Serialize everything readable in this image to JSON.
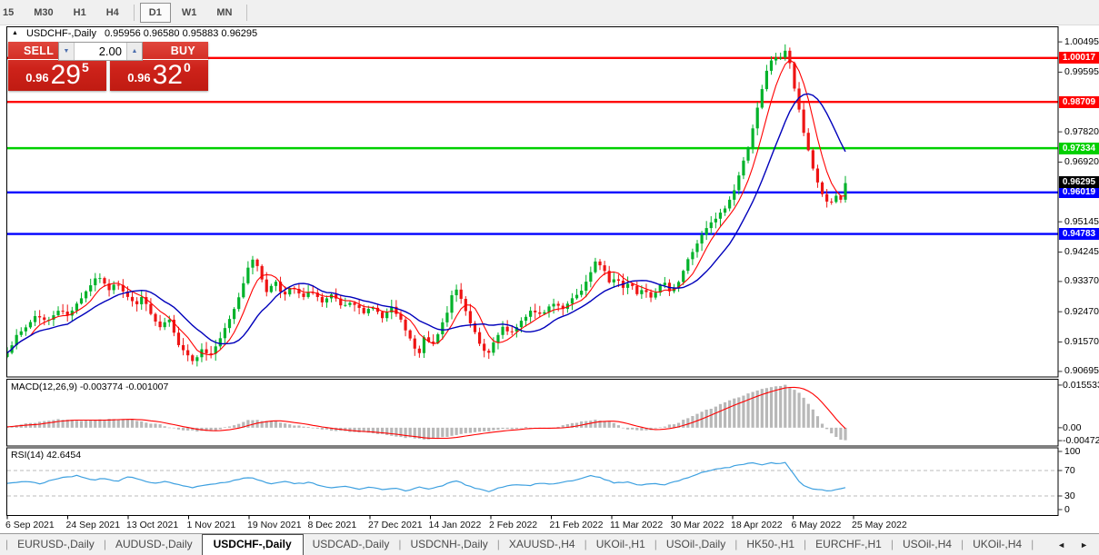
{
  "toolbar": {
    "timeframes": [
      "15",
      "M30",
      "H1",
      "H4",
      "D1",
      "W1",
      "MN"
    ],
    "active": "D1"
  },
  "icons": {
    "collapse": "▲",
    "spinner_down": "▼",
    "spinner_up": "▲",
    "tab_prev": "◄",
    "tab_next": "►"
  },
  "chart": {
    "title_symbol": "USDCHF-,Daily",
    "ohlc_text": "0.95956 0.96580 0.95883 0.96295",
    "trade_panel": {
      "sell_label": "SELL",
      "buy_label": "BUY",
      "volume": "2.00",
      "sell_price_small": "0.96",
      "sell_price_big": "29",
      "sell_price_sup": "5",
      "buy_price_small": "0.96",
      "buy_price_big": "32",
      "buy_price_sup": "0"
    }
  },
  "chart_data": {
    "type": "candlestick",
    "symbol": "USDCHF-,Daily",
    "ohlc_display": {
      "open": "0.95956",
      "high": "0.96580",
      "low": "0.95883",
      "close": "0.96295"
    },
    "num_candles": 182,
    "ylim": [
      0.9053,
      1.0093
    ],
    "price_axis_ticks": [
      {
        "label": "1.00495",
        "value": 1.00495
      },
      {
        "label": "0.99595",
        "value": 0.99595
      },
      {
        "label": "0.97820",
        "value": 0.9782
      },
      {
        "label": "0.96920",
        "value": 0.9692
      },
      {
        "label": "0.95145",
        "value": 0.95145
      },
      {
        "label": "0.94245",
        "value": 0.94245
      },
      {
        "label": "0.93370",
        "value": 0.9337
      },
      {
        "label": "0.92470",
        "value": 0.9247
      },
      {
        "label": "0.91570",
        "value": 0.9157
      },
      {
        "label": "0.90695",
        "value": 0.90695
      }
    ],
    "levels": [
      {
        "price": 1.00017,
        "label": "1.00017",
        "color": "#ff0000"
      },
      {
        "price": 0.98709,
        "label": "0.98709",
        "color": "#ff0000"
      },
      {
        "price": 0.97334,
        "label": "0.97334",
        "color": "#00d000"
      },
      {
        "price": 0.96019,
        "label": "0.96019",
        "color": "#0000ff"
      },
      {
        "price": 0.94783,
        "label": "0.94783",
        "color": "#0000ff"
      }
    ],
    "current_price": {
      "price": 0.96295,
      "label": "0.96295",
      "color": "#000000"
    },
    "close_path": [
      [
        0,
        0.913
      ],
      [
        0.01,
        0.917
      ],
      [
        0.022,
        0.92
      ],
      [
        0.035,
        0.924
      ],
      [
        0.048,
        0.9215
      ],
      [
        0.06,
        0.9255
      ],
      [
        0.072,
        0.9235
      ],
      [
        0.082,
        0.927
      ],
      [
        0.092,
        0.93
      ],
      [
        0.1,
        0.933
      ],
      [
        0.11,
        0.9352
      ],
      [
        0.12,
        0.931
      ],
      [
        0.13,
        0.934
      ],
      [
        0.142,
        0.9295
      ],
      [
        0.152,
        0.9268
      ],
      [
        0.162,
        0.929
      ],
      [
        0.172,
        0.9235
      ],
      [
        0.182,
        0.9195
      ],
      [
        0.192,
        0.9228
      ],
      [
        0.202,
        0.916
      ],
      [
        0.212,
        0.913
      ],
      [
        0.222,
        0.9098
      ],
      [
        0.232,
        0.914
      ],
      [
        0.24,
        0.9112
      ],
      [
        0.25,
        0.915
      ],
      [
        0.26,
        0.9195
      ],
      [
        0.272,
        0.926
      ],
      [
        0.282,
        0.9335
      ],
      [
        0.291,
        0.9415
      ],
      [
        0.3,
        0.937
      ],
      [
        0.31,
        0.9305
      ],
      [
        0.32,
        0.934
      ],
      [
        0.33,
        0.9292
      ],
      [
        0.34,
        0.9322
      ],
      [
        0.352,
        0.9286
      ],
      [
        0.364,
        0.931
      ],
      [
        0.376,
        0.9272
      ],
      [
        0.388,
        0.9296
      ],
      [
        0.4,
        0.9258
      ],
      [
        0.412,
        0.9272
      ],
      [
        0.424,
        0.9246
      ],
      [
        0.436,
        0.9262
      ],
      [
        0.448,
        0.9226
      ],
      [
        0.458,
        0.9258
      ],
      [
        0.468,
        0.9228
      ],
      [
        0.476,
        0.9188
      ],
      [
        0.484,
        0.915
      ],
      [
        0.49,
        0.9108
      ],
      [
        0.498,
        0.918
      ],
      [
        0.506,
        0.9148
      ],
      [
        0.514,
        0.9186
      ],
      [
        0.524,
        0.9232
      ],
      [
        0.534,
        0.933
      ],
      [
        0.544,
        0.9268
      ],
      [
        0.554,
        0.92
      ],
      [
        0.564,
        0.9152
      ],
      [
        0.572,
        0.911
      ],
      [
        0.582,
        0.9162
      ],
      [
        0.592,
        0.9202
      ],
      [
        0.602,
        0.9182
      ],
      [
        0.614,
        0.9222
      ],
      [
        0.626,
        0.9256
      ],
      [
        0.638,
        0.9232
      ],
      [
        0.65,
        0.9272
      ],
      [
        0.662,
        0.9252
      ],
      [
        0.674,
        0.9282
      ],
      [
        0.686,
        0.9315
      ],
      [
        0.695,
        0.9355
      ],
      [
        0.703,
        0.94
      ],
      [
        0.711,
        0.9378
      ],
      [
        0.719,
        0.933
      ],
      [
        0.727,
        0.9352
      ],
      [
        0.735,
        0.932
      ],
      [
        0.743,
        0.9336
      ],
      [
        0.751,
        0.9302
      ],
      [
        0.759,
        0.9322
      ],
      [
        0.767,
        0.9292
      ],
      [
        0.775,
        0.9312
      ],
      [
        0.783,
        0.9332
      ],
      [
        0.791,
        0.931
      ],
      [
        0.8,
        0.933
      ],
      [
        0.812,
        0.94
      ],
      [
        0.824,
        0.9455
      ],
      [
        0.836,
        0.95
      ],
      [
        0.848,
        0.953
      ],
      [
        0.858,
        0.956
      ],
      [
        0.866,
        0.96
      ],
      [
        0.874,
        0.966
      ],
      [
        0.882,
        0.972
      ],
      [
        0.89,
        0.98
      ],
      [
        0.898,
        0.988
      ],
      [
        0.906,
        0.996
      ],
      [
        0.914,
        1.001
      ],
      [
        0.922,
        0.9995
      ],
      [
        0.929,
        1.003
      ],
      [
        0.934,
        0.9985
      ],
      [
        0.94,
        0.99
      ],
      [
        0.946,
        0.983
      ],
      [
        0.952,
        0.976
      ],
      [
        0.958,
        0.97
      ],
      [
        0.964,
        0.965
      ],
      [
        0.972,
        0.96
      ],
      [
        0.98,
        0.9565
      ],
      [
        0.988,
        0.959
      ],
      [
        0.994,
        0.9575
      ],
      [
        1,
        0.96295
      ]
    ],
    "macd": {
      "label_text": "MACD(12,26,9) -0.003774 -0.001007",
      "ylim": [
        -0.0065,
        0.0175
      ],
      "axis_ticks": [
        {
          "label": "0.015533",
          "value": 0.015533
        },
        {
          "label": "0.00",
          "value": 0
        },
        {
          "label": "-0.00472",
          "value": -0.00472
        }
      ],
      "path": [
        [
          0,
          0.0003
        ],
        [
          0.03,
          0.0018
        ],
        [
          0.06,
          0.003
        ],
        [
          0.09,
          0.0026
        ],
        [
          0.12,
          0.0032
        ],
        [
          0.15,
          0.0028
        ],
        [
          0.18,
          0.0012
        ],
        [
          0.21,
          -0.001
        ],
        [
          0.24,
          -0.0014
        ],
        [
          0.27,
          0.0008
        ],
        [
          0.29,
          0.003
        ],
        [
          0.32,
          0.0022
        ],
        [
          0.35,
          0.0006
        ],
        [
          0.38,
          -0.0008
        ],
        [
          0.41,
          -0.0014
        ],
        [
          0.44,
          -0.0022
        ],
        [
          0.47,
          -0.0034
        ],
        [
          0.5,
          -0.0042
        ],
        [
          0.53,
          -0.003
        ],
        [
          0.56,
          -0.0016
        ],
        [
          0.59,
          -0.0007
        ],
        [
          0.62,
          0.0001
        ],
        [
          0.645,
          -0.0006
        ],
        [
          0.67,
          0.0014
        ],
        [
          0.7,
          0.003
        ],
        [
          0.72,
          0.002
        ],
        [
          0.74,
          -0.0006
        ],
        [
          0.76,
          -0.0012
        ],
        [
          0.78,
          0.0002
        ],
        [
          0.8,
          0.0018
        ],
        [
          0.83,
          0.0058
        ],
        [
          0.86,
          0.0098
        ],
        [
          0.89,
          0.0132
        ],
        [
          0.91,
          0.0148
        ],
        [
          0.93,
          0.0155
        ],
        [
          0.945,
          0.0128
        ],
        [
          0.96,
          0.0072
        ],
        [
          0.975,
          0.0005
        ],
        [
          0.99,
          -0.0038
        ],
        [
          1,
          -0.0047
        ]
      ]
    },
    "rsi": {
      "label_text": "RSI(14) 42.6454",
      "value": 42.6454,
      "overbought": 70,
      "oversold": 30,
      "axis_ticks": [
        {
          "label": "100",
          "value": 100
        },
        {
          "label": "70",
          "value": 70
        },
        {
          "label": "30",
          "value": 30
        },
        {
          "label": "0",
          "value": 0
        }
      ],
      "path": [
        [
          0,
          50
        ],
        [
          0.02,
          53
        ],
        [
          0.04,
          49
        ],
        [
          0.055,
          56
        ],
        [
          0.07,
          60
        ],
        [
          0.085,
          62
        ],
        [
          0.1,
          55
        ],
        [
          0.115,
          58
        ],
        [
          0.13,
          53
        ],
        [
          0.145,
          60
        ],
        [
          0.16,
          55
        ],
        [
          0.175,
          50
        ],
        [
          0.19,
          53
        ],
        [
          0.205,
          47
        ],
        [
          0.22,
          43
        ],
        [
          0.235,
          46
        ],
        [
          0.25,
          50
        ],
        [
          0.265,
          53
        ],
        [
          0.28,
          57
        ],
        [
          0.291,
          60
        ],
        [
          0.3,
          54
        ],
        [
          0.315,
          50
        ],
        [
          0.33,
          53
        ],
        [
          0.345,
          49
        ],
        [
          0.36,
          51
        ],
        [
          0.375,
          46
        ],
        [
          0.39,
          43
        ],
        [
          0.405,
          45
        ],
        [
          0.42,
          41
        ],
        [
          0.435,
          44
        ],
        [
          0.45,
          40
        ],
        [
          0.465,
          43
        ],
        [
          0.475,
          37
        ],
        [
          0.49,
          44
        ],
        [
          0.505,
          41
        ],
        [
          0.52,
          46
        ],
        [
          0.535,
          55
        ],
        [
          0.55,
          46
        ],
        [
          0.565,
          40
        ],
        [
          0.575,
          37
        ],
        [
          0.59,
          44
        ],
        [
          0.605,
          48
        ],
        [
          0.62,
          46
        ],
        [
          0.635,
          50
        ],
        [
          0.65,
          48
        ],
        [
          0.665,
          52
        ],
        [
          0.68,
          55
        ],
        [
          0.695,
          63
        ],
        [
          0.71,
          58
        ],
        [
          0.725,
          50
        ],
        [
          0.74,
          52
        ],
        [
          0.755,
          47
        ],
        [
          0.77,
          50
        ],
        [
          0.785,
          48
        ],
        [
          0.8,
          53
        ],
        [
          0.815,
          60
        ],
        [
          0.83,
          68
        ],
        [
          0.845,
          72
        ],
        [
          0.86,
          75
        ],
        [
          0.875,
          79
        ],
        [
          0.89,
          82
        ],
        [
          0.9,
          78
        ],
        [
          0.91,
          83
        ],
        [
          0.92,
          80
        ],
        [
          0.929,
          82
        ],
        [
          0.938,
          65
        ],
        [
          0.947,
          48
        ],
        [
          0.956,
          43
        ],
        [
          0.965,
          40
        ],
        [
          0.974,
          39
        ],
        [
          0.983,
          38
        ],
        [
          0.991,
          40
        ],
        [
          1,
          42.65
        ]
      ]
    },
    "x_dates": [
      "6 Sep 2021",
      "24 Sep 2021",
      "13 Oct 2021",
      "1 Nov 2021",
      "19 Nov 2021",
      "8 Dec 2021",
      "27 Dec 2021",
      "14 Jan 2022",
      "2 Feb 2022",
      "21 Feb 2022",
      "11 Mar 2022",
      "30 Mar 2022",
      "18 Apr 2022",
      "6 May 2022",
      "25 May 2022"
    ],
    "colors": {
      "up": "#00b22a",
      "down": "#ee1414",
      "ma_fast": "#ff0000",
      "ma_slow": "#0000bb",
      "macd_bar": "#b8b8b8",
      "macd_signal": "#ff0000",
      "rsi_line": "#3da0e0",
      "rsi_levels": "#bbbbbb",
      "badge_text": "#ffffff"
    }
  },
  "tabs": {
    "items": [
      "EURUSD-,Daily",
      "AUDUSD-,Daily",
      "USDCHF-,Daily",
      "USDCAD-,Daily",
      "USDCNH-,Daily",
      "XAUUSD-,H4",
      "UKOil-,H1",
      "USOil-,Daily",
      "HK50-,H1",
      "EURCHF-,H1",
      "USOil-,H4",
      "UKOil-,H4"
    ],
    "active_index": 2
  }
}
